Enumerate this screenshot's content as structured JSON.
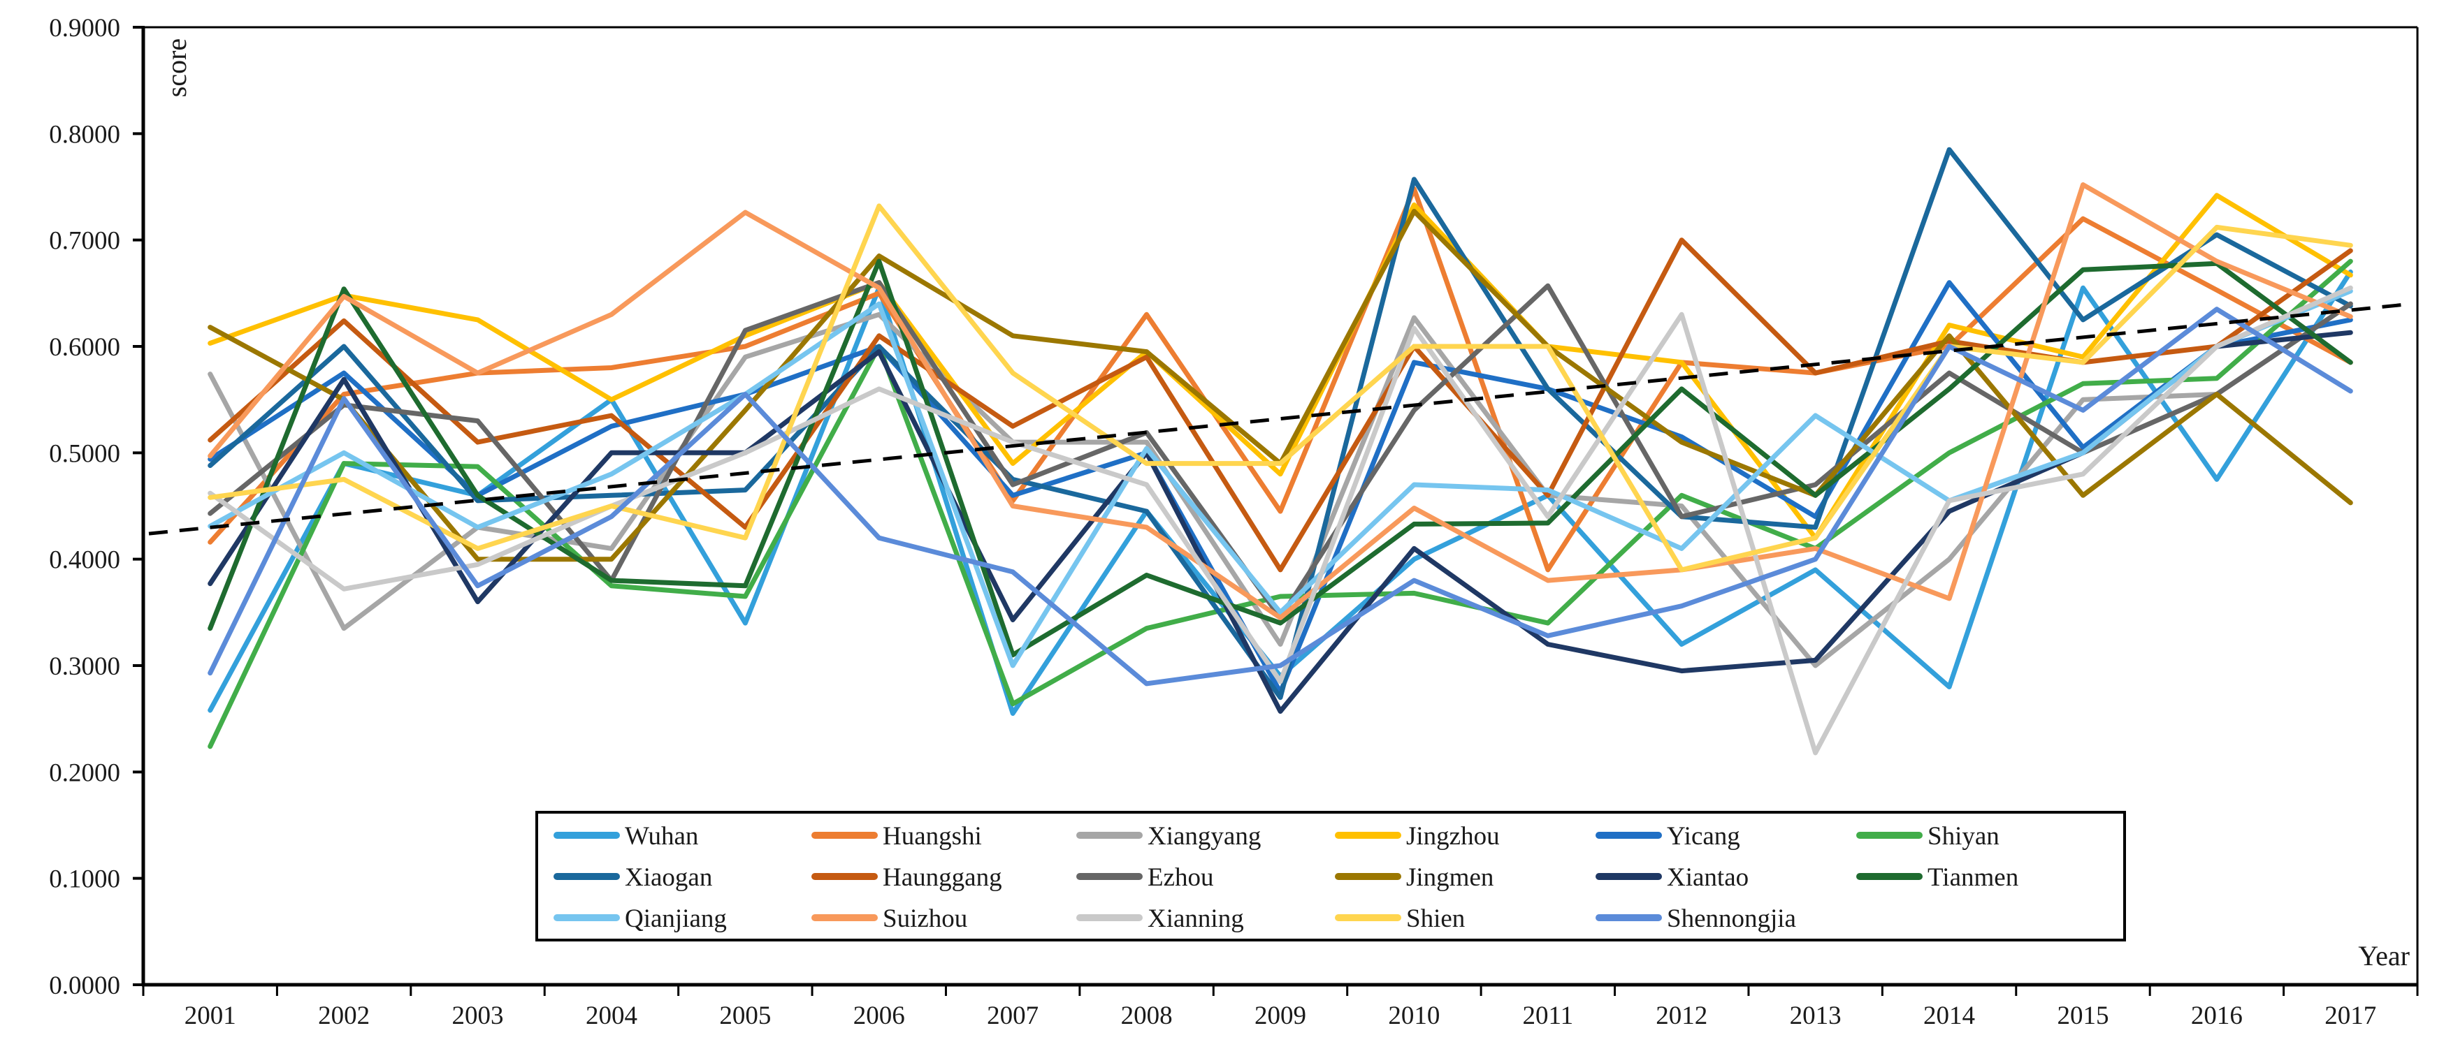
{
  "figure": {
    "ylabel": "score",
    "xlabel": "Year",
    "background": "#ffffff",
    "axis_color": "#000000",
    "trend_color": "#000000"
  },
  "chart_data": {
    "type": "line",
    "title": "",
    "xlabel": "Year",
    "ylabel": "score",
    "x": [
      2001,
      2002,
      2003,
      2004,
      2005,
      2006,
      2007,
      2008,
      2009,
      2010,
      2011,
      2012,
      2013,
      2014,
      2015,
      2016,
      2017
    ],
    "ylim": [
      0.0,
      0.9
    ],
    "ytick_step": 0.1,
    "ytick_decimals": 4,
    "grid": false,
    "legend_position": "bottom-center-box",
    "legend_rows": [
      6,
      6,
      5
    ],
    "trendline": {
      "style": "dashed",
      "color": "#000000",
      "start_value": 0.424,
      "end_value": 0.64
    },
    "series": [
      {
        "name": "Wuhan",
        "color": "#33A0DB",
        "values": [
          0.258,
          0.49,
          0.46,
          0.55,
          0.34,
          0.655,
          0.255,
          0.445,
          0.29,
          0.4,
          0.46,
          0.32,
          0.39,
          0.28,
          0.655,
          0.475,
          0.67
        ]
      },
      {
        "name": "Huangshi",
        "color": "#ED7D31",
        "values": [
          0.416,
          0.555,
          0.575,
          0.58,
          0.6,
          0.65,
          0.455,
          0.63,
          0.445,
          0.748,
          0.39,
          0.585,
          0.575,
          0.6,
          0.72,
          0.653,
          0.585
        ]
      },
      {
        "name": "Xiangyang",
        "color": "#A6A6A6",
        "values": [
          0.574,
          0.335,
          0.43,
          0.41,
          0.59,
          0.63,
          0.51,
          0.51,
          0.32,
          0.627,
          0.46,
          0.45,
          0.3,
          0.4,
          0.55,
          0.555,
          0.64
        ]
      },
      {
        "name": "Jingzhou",
        "color": "#FFC000",
        "values": [
          0.603,
          0.648,
          0.625,
          0.55,
          0.61,
          0.66,
          0.49,
          0.595,
          0.48,
          0.733,
          0.6,
          0.585,
          0.42,
          0.62,
          0.59,
          0.742,
          0.667
        ]
      },
      {
        "name": "Yicang",
        "color": "#1F6FC5",
        "values": [
          0.494,
          0.575,
          0.46,
          0.525,
          0.555,
          0.6,
          0.46,
          0.5,
          0.275,
          0.585,
          0.56,
          0.515,
          0.44,
          0.66,
          0.505,
          0.6,
          0.625
        ]
      },
      {
        "name": "Shiyan",
        "color": "#41AD49",
        "values": [
          0.224,
          0.49,
          0.487,
          0.375,
          0.365,
          0.6,
          0.264,
          0.335,
          0.365,
          0.368,
          0.34,
          0.46,
          0.41,
          0.5,
          0.565,
          0.57,
          0.68
        ]
      },
      {
        "name": "Xiaogan",
        "color": "#1A689C",
        "values": [
          0.488,
          0.6,
          0.455,
          0.46,
          0.465,
          0.6,
          0.475,
          0.445,
          0.27,
          0.757,
          0.56,
          0.44,
          0.43,
          0.785,
          0.625,
          0.705,
          0.638
        ]
      },
      {
        "name": "Haunggang",
        "color": "#C55A11",
        "values": [
          0.512,
          0.624,
          0.51,
          0.535,
          0.43,
          0.61,
          0.525,
          0.59,
          0.39,
          0.6,
          0.46,
          0.7,
          0.575,
          0.605,
          0.585,
          0.6,
          0.69
        ]
      },
      {
        "name": "Ezhou",
        "color": "#666666",
        "values": [
          0.443,
          0.545,
          0.53,
          0.38,
          0.615,
          0.66,
          0.47,
          0.519,
          0.345,
          0.54,
          0.657,
          0.44,
          0.47,
          0.575,
          0.5,
          0.555,
          0.64
        ]
      },
      {
        "name": "Jingmen",
        "color": "#9B7700",
        "values": [
          0.618,
          0.55,
          0.4,
          0.4,
          0.54,
          0.685,
          0.61,
          0.595,
          0.49,
          0.727,
          0.6,
          0.51,
          0.46,
          0.61,
          0.46,
          0.555,
          0.453
        ]
      },
      {
        "name": "Xiantao",
        "color": "#1F3864",
        "values": [
          0.377,
          0.569,
          0.36,
          0.5,
          0.5,
          0.595,
          0.343,
          0.5,
          0.257,
          0.41,
          0.32,
          0.295,
          0.305,
          0.445,
          0.5,
          0.6,
          0.613
        ]
      },
      {
        "name": "Tianmen",
        "color": "#1E6B2F",
        "values": [
          0.335,
          0.654,
          0.46,
          0.38,
          0.375,
          0.68,
          0.31,
          0.385,
          0.34,
          0.433,
          0.434,
          0.56,
          0.46,
          0.56,
          0.672,
          0.678,
          0.585
        ]
      },
      {
        "name": "Qianjiang",
        "color": "#76C5EF",
        "values": [
          0.431,
          0.5,
          0.43,
          0.48,
          0.555,
          0.64,
          0.3,
          0.504,
          0.35,
          0.47,
          0.465,
          0.41,
          0.535,
          0.455,
          0.5,
          0.6,
          0.652
        ]
      },
      {
        "name": "Suizhou",
        "color": "#F8995B",
        "values": [
          0.497,
          0.647,
          0.575,
          0.63,
          0.726,
          0.655,
          0.45,
          0.43,
          0.345,
          0.448,
          0.38,
          0.39,
          0.41,
          0.363,
          0.752,
          0.68,
          0.628
        ]
      },
      {
        "name": "Xianning",
        "color": "#C9C9C9",
        "values": [
          0.462,
          0.372,
          0.395,
          0.45,
          0.5,
          0.56,
          0.51,
          0.47,
          0.285,
          0.617,
          0.44,
          0.63,
          0.218,
          0.455,
          0.48,
          0.6,
          0.655
        ]
      },
      {
        "name": "Shien",
        "color": "#FFD54F",
        "values": [
          0.458,
          0.475,
          0.41,
          0.45,
          0.42,
          0.732,
          0.575,
          0.49,
          0.49,
          0.6,
          0.6,
          0.39,
          0.42,
          0.6,
          0.585,
          0.712,
          0.695
        ]
      },
      {
        "name": "Shennongjia",
        "color": "#5B8BD9",
        "values": [
          0.293,
          0.551,
          0.375,
          0.44,
          0.555,
          0.42,
          0.388,
          0.283,
          0.3,
          0.38,
          0.328,
          0.356,
          0.4,
          0.6,
          0.54,
          0.635,
          0.558
        ]
      }
    ]
  }
}
